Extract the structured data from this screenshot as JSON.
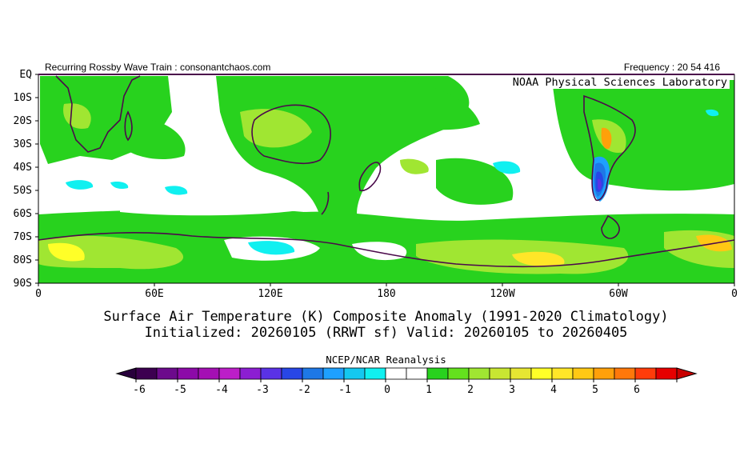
{
  "header": {
    "left": "Recurring Rossby Wave Train : consonantchaos.com",
    "right": "Frequency : 20 54 416",
    "lab": "NOAA Physical Sciences Laboratory"
  },
  "map": {
    "lat_labels": [
      "EQ",
      "10S",
      "20S",
      "30S",
      "40S",
      "50S",
      "60S",
      "70S",
      "80S",
      "90S"
    ],
    "lon_labels": [
      "0",
      "60E",
      "120E",
      "180",
      "120W",
      "60W",
      "0"
    ]
  },
  "title": {
    "line1": "Surface Air Temperature (K) Composite Anomaly (1991-2020 Climatology)",
    "line2": "Initialized: 20260105 (RRWT sf) Valid: 20260105 to 20260405"
  },
  "colorbar": {
    "title": "NCEP/NCAR Reanalysis",
    "tick_labels": [
      "-6",
      "-5",
      "-4",
      "-3",
      "-2",
      "-1",
      "0",
      "1",
      "2",
      "3",
      "4",
      "5",
      "6"
    ],
    "colors": [
      "#3c0050",
      "#6c0a8c",
      "#8c0aa8",
      "#a40fb4",
      "#bc1ec8",
      "#8c1ed2",
      "#5a32e6",
      "#2846e6",
      "#1e78e6",
      "#1ea0ff",
      "#14c8f0",
      "#10f0f0",
      "#ffffff",
      "#ffffff",
      "#28d21e",
      "#64e11e",
      "#a0e632",
      "#c8e632",
      "#e6e632",
      "#ffff28",
      "#ffe628",
      "#ffc814",
      "#ffa00a",
      "#ff780a",
      "#ff3c0a",
      "#e60000"
    ],
    "low_arrow_color": "#28003c",
    "high_arrow_color": "#c80000"
  }
}
